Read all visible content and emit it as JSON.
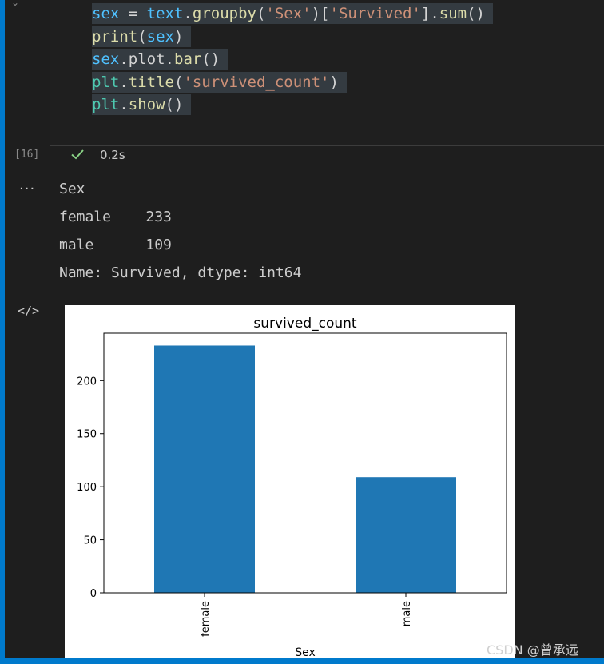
{
  "code_cell": {
    "lines": [
      [
        {
          "t": "sex",
          "c": "tok-var"
        },
        {
          "t": " = ",
          "c": "tok-op"
        },
        {
          "t": "text",
          "c": "tok-var"
        },
        {
          "t": ".",
          "c": "tok-plain"
        },
        {
          "t": "groupby",
          "c": "tok-fn"
        },
        {
          "t": "(",
          "c": "tok-plain"
        },
        {
          "t": "'Sex'",
          "c": "tok-str"
        },
        {
          "t": ")[",
          "c": "tok-plain"
        },
        {
          "t": "'Survived'",
          "c": "tok-str"
        },
        {
          "t": "].",
          "c": "tok-plain"
        },
        {
          "t": "sum",
          "c": "tok-fn"
        },
        {
          "t": "()",
          "c": "tok-plain"
        }
      ],
      [
        {
          "t": "print",
          "c": "tok-fn"
        },
        {
          "t": "(",
          "c": "tok-plain"
        },
        {
          "t": "sex",
          "c": "tok-var"
        },
        {
          "t": ")",
          "c": "tok-plain"
        }
      ],
      [
        {
          "t": "sex",
          "c": "tok-var"
        },
        {
          "t": ".",
          "c": "tok-plain"
        },
        {
          "t": "plot",
          "c": "tok-plain"
        },
        {
          "t": ".",
          "c": "tok-plain"
        },
        {
          "t": "bar",
          "c": "tok-fn"
        },
        {
          "t": "()",
          "c": "tok-plain"
        }
      ],
      [
        {
          "t": "plt",
          "c": "tok-cls"
        },
        {
          "t": ".",
          "c": "tok-plain"
        },
        {
          "t": "title",
          "c": "tok-fn"
        },
        {
          "t": "(",
          "c": "tok-plain"
        },
        {
          "t": "'survived_count'",
          "c": "tok-str"
        },
        {
          "t": ")",
          "c": "tok-plain"
        }
      ],
      [
        {
          "t": "plt",
          "c": "tok-cls"
        },
        {
          "t": ".",
          "c": "tok-plain"
        },
        {
          "t": "show",
          "c": "tok-fn"
        },
        {
          "t": "()",
          "c": "tok-plain"
        }
      ]
    ]
  },
  "exec": {
    "count": "[16]",
    "time": "0.2s",
    "status_icon": "check-icon",
    "status_color": "#89d185"
  },
  "output": {
    "menu_icon": "···",
    "lines": [
      "Sex",
      "female    233",
      "male      109",
      "Name: Survived, dtype: int64"
    ]
  },
  "plot_icon_label": "</>",
  "chart_data": {
    "type": "bar",
    "title": "survived_count",
    "xlabel": "Sex",
    "ylabel": "",
    "categories": [
      "female",
      "male"
    ],
    "values": [
      233,
      109
    ],
    "ylim": [
      0,
      244.65
    ],
    "yticks": [
      0,
      50,
      100,
      150,
      200
    ],
    "color": "#1f77b4",
    "legend": false,
    "grid": false
  },
  "watermark": "CSDN @曾承远",
  "colors": {
    "accent": "#007acc",
    "background": "#1e1e1e"
  }
}
